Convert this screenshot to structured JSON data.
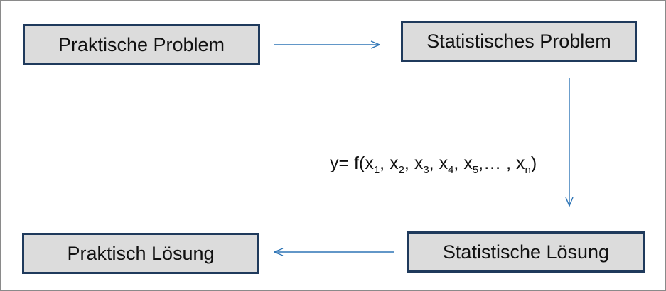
{
  "boxes": {
    "praktische_problem": "Praktische Problem",
    "statistisches_problem": "Statistisches Problem",
    "praktisch_loesung": "Praktisch Lösung",
    "statistische_loesung": "Statistische  Lösung"
  },
  "formula": {
    "prefix": "y= f(",
    "var": "x",
    "sub1": "1",
    "sub2": "2",
    "sub3": "3",
    "sub4": "4",
    "sub5": "5",
    "subn": "n",
    "sep": ", ",
    "ellipsis": ",… , ",
    "suffix": ")"
  },
  "colors": {
    "box_fill": "#dcdcdc",
    "box_border": "#1f3a5c",
    "arrow": "#2e75b6"
  }
}
